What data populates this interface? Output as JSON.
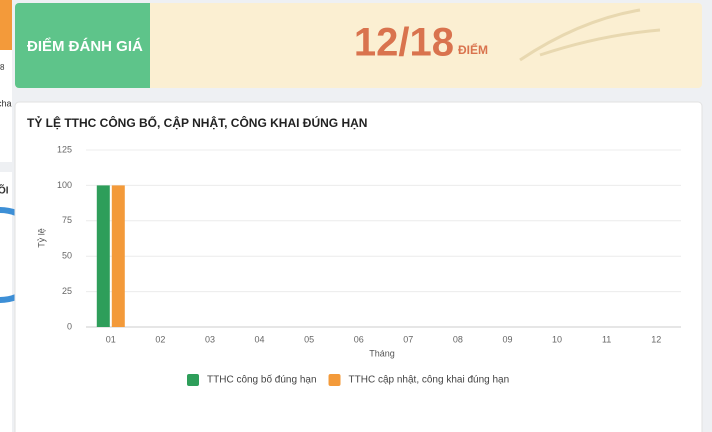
{
  "left_panel": {
    "texts": [
      "8",
      "cha",
      "ÕI"
    ]
  },
  "score_card": {
    "label": "ĐIỂM ĐÁNH GIÁ",
    "score": "12/18",
    "unit": "ĐIỂM"
  },
  "chart_data": {
    "type": "bar",
    "title": "TỶ LỆ TTHC CÔNG BỐ, CẬP NHẬT, CÔNG KHAI ĐÚNG HẠN",
    "x_label": "Tháng",
    "y_label": "Tỷ lệ",
    "categories": [
      "01",
      "02",
      "03",
      "04",
      "05",
      "06",
      "07",
      "08",
      "09",
      "10",
      "11",
      "12"
    ],
    "series": [
      {
        "name": "TTHC công bố đúng hạn",
        "color": "#2e9e5a",
        "values": [
          100,
          0,
          0,
          0,
          0,
          0,
          0,
          0,
          0,
          0,
          0,
          0
        ]
      },
      {
        "name": "TTHC cập nhật, công khai đúng hạn",
        "color": "#f39a3a",
        "values": [
          100,
          0,
          0,
          0,
          0,
          0,
          0,
          0,
          0,
          0,
          0,
          0
        ]
      }
    ],
    "ylim": [
      0,
      125
    ],
    "yticks": [
      0,
      25,
      50,
      75,
      100,
      125
    ],
    "grid": true,
    "legend": "bottom"
  }
}
